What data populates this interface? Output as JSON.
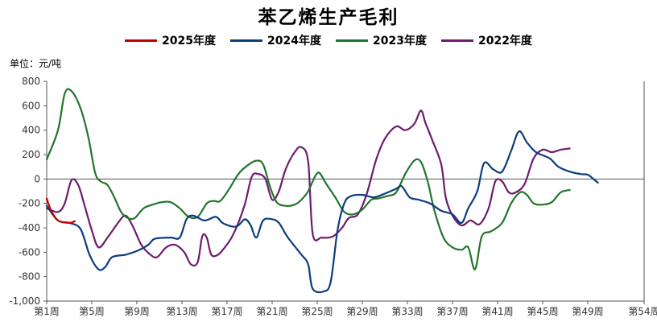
{
  "chart_data": {
    "type": "line",
    "title": "苯乙烯生产毛利",
    "unit_label": "单位：元/吨",
    "ylim": [
      -1000,
      800
    ],
    "xlim": [
      1,
      54
    ],
    "y_ticks": [
      "800",
      "600",
      "400",
      "200",
      "0",
      "-200",
      "-400",
      "-600",
      "-800",
      "-1,000"
    ],
    "x_ticks": [
      {
        "label": "第1周",
        "week": 1
      },
      {
        "label": "第5周",
        "week": 5
      },
      {
        "label": "第9周",
        "week": 9
      },
      {
        "label": "第13周",
        "week": 13
      },
      {
        "label": "第17周",
        "week": 17
      },
      {
        "label": "第21周",
        "week": 21
      },
      {
        "label": "第25周",
        "week": 25
      },
      {
        "label": "第29周",
        "week": 29
      },
      {
        "label": "第33周",
        "week": 33
      },
      {
        "label": "第37周",
        "week": 37
      },
      {
        "label": "第41周",
        "week": 41
      },
      {
        "label": "第45周",
        "week": 45
      },
      {
        "label": "第49周",
        "week": 49
      },
      {
        "label": "第54周",
        "week": 54
      }
    ],
    "legend_position": "top",
    "grid": false,
    "series": [
      {
        "name": "2025年度",
        "color": "#c00000",
        "points": [
          [
            1,
            -160
          ],
          [
            1.4,
            -260
          ],
          [
            2,
            -340
          ],
          [
            3,
            -360
          ],
          [
            3.5,
            -345
          ]
        ]
      },
      {
        "name": "2024年度",
        "color": "#0b3d7d",
        "points": [
          [
            1,
            -220
          ],
          [
            2,
            -340
          ],
          [
            3,
            -360
          ],
          [
            4,
            -410
          ],
          [
            4.8,
            -620
          ],
          [
            5.6,
            -740
          ],
          [
            6.2,
            -720
          ],
          [
            6.8,
            -640
          ],
          [
            8,
            -620
          ],
          [
            9,
            -590
          ],
          [
            10,
            -540
          ],
          [
            10.6,
            -490
          ],
          [
            12,
            -480
          ],
          [
            12.8,
            -480
          ],
          [
            13.4,
            -330
          ],
          [
            14,
            -300
          ],
          [
            15,
            -340
          ],
          [
            16,
            -310
          ],
          [
            16.6,
            -360
          ],
          [
            17.5,
            -390
          ],
          [
            18,
            -380
          ],
          [
            18.6,
            -330
          ],
          [
            19.1,
            -380
          ],
          [
            19.6,
            -480
          ],
          [
            20.2,
            -340
          ],
          [
            21,
            -330
          ],
          [
            21.6,
            -360
          ],
          [
            22.4,
            -480
          ],
          [
            23.6,
            -620
          ],
          [
            24.2,
            -700
          ],
          [
            24.6,
            -900
          ],
          [
            25.6,
            -920
          ],
          [
            26.2,
            -840
          ],
          [
            26.8,
            -420
          ],
          [
            27.4,
            -200
          ],
          [
            28,
            -140
          ],
          [
            29,
            -130
          ],
          [
            30,
            -150
          ],
          [
            31,
            -120
          ],
          [
            32,
            -80
          ],
          [
            32.5,
            -60
          ],
          [
            33.2,
            -150
          ],
          [
            34,
            -170
          ],
          [
            35,
            -200
          ],
          [
            36,
            -260
          ],
          [
            37,
            -290
          ],
          [
            37.8,
            -360
          ],
          [
            38.4,
            -240
          ],
          [
            39.2,
            -100
          ],
          [
            39.8,
            130
          ],
          [
            40.6,
            80
          ],
          [
            41.4,
            60
          ],
          [
            42.2,
            230
          ],
          [
            42.9,
            390
          ],
          [
            43.6,
            300
          ],
          [
            44.4,
            220
          ],
          [
            45.6,
            170
          ],
          [
            46.4,
            100
          ],
          [
            47.4,
            60
          ],
          [
            48.4,
            40
          ],
          [
            49,
            35
          ],
          [
            49.5,
            0
          ],
          [
            49.9,
            -30
          ]
        ]
      },
      {
        "name": "2023年度",
        "color": "#22752a",
        "points": [
          [
            1,
            160
          ],
          [
            2,
            400
          ],
          [
            2.6,
            700
          ],
          [
            3.2,
            720
          ],
          [
            4,
            580
          ],
          [
            4.7,
            340
          ],
          [
            5.3,
            50
          ],
          [
            5.8,
            -20
          ],
          [
            6.4,
            -50
          ],
          [
            7,
            -150
          ],
          [
            7.6,
            -270
          ],
          [
            8.2,
            -320
          ],
          [
            8.8,
            -320
          ],
          [
            9.6,
            -240
          ],
          [
            10.4,
            -210
          ],
          [
            11.2,
            -190
          ],
          [
            12,
            -190
          ],
          [
            12.8,
            -240
          ],
          [
            13.6,
            -310
          ],
          [
            14.4,
            -310
          ],
          [
            15.2,
            -200
          ],
          [
            15.8,
            -180
          ],
          [
            16.4,
            -180
          ],
          [
            17.2,
            -80
          ],
          [
            18,
            40
          ],
          [
            18.8,
            110
          ],
          [
            19.6,
            150
          ],
          [
            20.2,
            120
          ],
          [
            20.8,
            -60
          ],
          [
            21.4,
            -190
          ],
          [
            22.2,
            -220
          ],
          [
            23,
            -210
          ],
          [
            23.6,
            -170
          ],
          [
            24.2,
            -100
          ],
          [
            24.8,
            20
          ],
          [
            25.2,
            50
          ],
          [
            25.8,
            -40
          ],
          [
            26.6,
            -150
          ],
          [
            27.4,
            -270
          ],
          [
            28.2,
            -290
          ],
          [
            29,
            -250
          ],
          [
            29.8,
            -170
          ],
          [
            30.4,
            -160
          ],
          [
            31.2,
            -140
          ],
          [
            32,
            -110
          ],
          [
            32.8,
            40
          ],
          [
            33.6,
            150
          ],
          [
            34.2,
            140
          ],
          [
            34.8,
            -20
          ],
          [
            35.4,
            -260
          ],
          [
            36.2,
            -480
          ],
          [
            37,
            -560
          ],
          [
            37.8,
            -580
          ],
          [
            38.4,
            -560
          ],
          [
            39,
            -740
          ],
          [
            39.6,
            -470
          ],
          [
            40.4,
            -430
          ],
          [
            41.4,
            -360
          ],
          [
            42.2,
            -200
          ],
          [
            43,
            -110
          ],
          [
            43.6,
            -130
          ],
          [
            44.2,
            -200
          ],
          [
            45,
            -210
          ],
          [
            45.8,
            -190
          ],
          [
            46.6,
            -110
          ],
          [
            47.4,
            -90
          ]
        ]
      },
      {
        "name": "2022年度",
        "color": "#6e1b6e",
        "points": [
          [
            1,
            -240
          ],
          [
            2,
            -270
          ],
          [
            2.6,
            -200
          ],
          [
            3.2,
            -10
          ],
          [
            3.8,
            -50
          ],
          [
            4.4,
            -230
          ],
          [
            5,
            -420
          ],
          [
            5.6,
            -560
          ],
          [
            6.4,
            -480
          ],
          [
            7.4,
            -350
          ],
          [
            8,
            -300
          ],
          [
            8.6,
            -380
          ],
          [
            9.4,
            -540
          ],
          [
            10.2,
            -620
          ],
          [
            10.8,
            -640
          ],
          [
            11.6,
            -560
          ],
          [
            12.4,
            -540
          ],
          [
            13.2,
            -600
          ],
          [
            13.8,
            -700
          ],
          [
            14.4,
            -680
          ],
          [
            14.8,
            -470
          ],
          [
            15.2,
            -480
          ],
          [
            15.6,
            -620
          ],
          [
            16.2,
            -620
          ],
          [
            16.8,
            -560
          ],
          [
            17.4,
            -480
          ],
          [
            18,
            -360
          ],
          [
            18.6,
            -200
          ],
          [
            19.2,
            20
          ],
          [
            19.8,
            40
          ],
          [
            20.4,
            0
          ],
          [
            21,
            -170
          ],
          [
            21.6,
            -100
          ],
          [
            22.2,
            80
          ],
          [
            23,
            220
          ],
          [
            23.6,
            260
          ],
          [
            24.2,
            140
          ],
          [
            24.6,
            -450
          ],
          [
            25.4,
            -480
          ],
          [
            26.4,
            -470
          ],
          [
            27.2,
            -400
          ],
          [
            27.8,
            -320
          ],
          [
            28.6,
            -290
          ],
          [
            29.4,
            -120
          ],
          [
            30.2,
            150
          ],
          [
            31,
            330
          ],
          [
            32,
            430
          ],
          [
            32.8,
            400
          ],
          [
            33.6,
            450
          ],
          [
            34.2,
            560
          ],
          [
            34.6,
            460
          ],
          [
            35.2,
            320
          ],
          [
            36,
            120
          ],
          [
            36.4,
            -150
          ],
          [
            37,
            -300
          ],
          [
            37.8,
            -380
          ],
          [
            38.6,
            -340
          ],
          [
            39.4,
            -370
          ],
          [
            40.2,
            -240
          ],
          [
            40.8,
            -20
          ],
          [
            41.4,
            -20
          ],
          [
            42,
            -110
          ],
          [
            42.6,
            -110
          ],
          [
            43.4,
            -40
          ],
          [
            44.2,
            170
          ],
          [
            45,
            240
          ],
          [
            45.8,
            220
          ],
          [
            46.6,
            240
          ],
          [
            47.4,
            250
          ]
        ]
      }
    ]
  }
}
